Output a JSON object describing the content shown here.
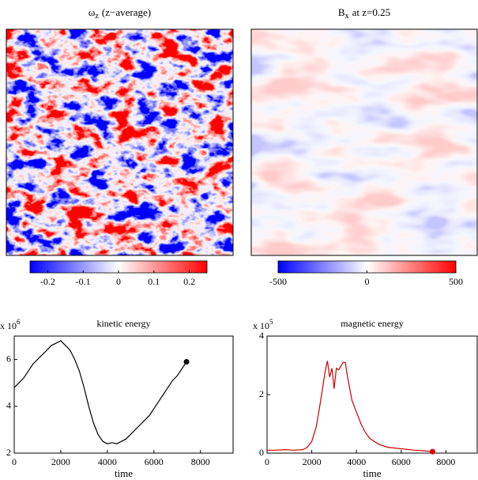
{
  "chart_data": [
    {
      "type": "heatmap",
      "title": "ω",
      "title_subscript": "z",
      "title_suffix": "(z−average)",
      "clim": [
        -0.25,
        0.25
      ],
      "cticks": [
        -0.2,
        -0.1,
        0,
        0.1,
        0.2
      ]
    },
    {
      "type": "heatmap",
      "title": "B",
      "title_subscript": "x",
      "title_suffix": "at z=0.25",
      "clim": [
        -500,
        500
      ],
      "cticks": [
        -500,
        0,
        500
      ]
    },
    {
      "type": "line",
      "title": "kinetic energy",
      "xlabel": "time",
      "ylabel_multiplier": "x 10",
      "ylabel_exponent": "6",
      "color": "#000000",
      "marker_color": "#000000",
      "x": [
        0,
        200,
        400,
        600,
        800,
        1000,
        1200,
        1400,
        1600,
        1800,
        2000,
        2200,
        2400,
        2600,
        2800,
        3000,
        3200,
        3400,
        3600,
        3800,
        4000,
        4200,
        4400,
        4600,
        4800,
        5000,
        5200,
        5400,
        5600,
        5800,
        6000,
        6200,
        6400,
        6600,
        6800,
        7000,
        7200,
        7400
      ],
      "values": [
        4.8,
        5.0,
        5.2,
        5.5,
        5.8,
        6.0,
        6.2,
        6.4,
        6.6,
        6.7,
        6.8,
        6.6,
        6.4,
        6.0,
        5.5,
        4.8,
        4.0,
        3.3,
        2.8,
        2.5,
        2.4,
        2.45,
        2.4,
        2.5,
        2.6,
        2.8,
        3.0,
        3.2,
        3.4,
        3.6,
        3.9,
        4.2,
        4.5,
        4.8,
        5.1,
        5.3,
        5.6,
        5.9
      ],
      "xlim": [
        0,
        9400
      ],
      "xticks": [
        0,
        2000,
        4000,
        6000,
        8000
      ],
      "ylim": [
        2,
        7
      ],
      "yticks": [
        2,
        4,
        6
      ]
    },
    {
      "type": "line",
      "title": "magnetic energy",
      "xlabel": "time",
      "ylabel_multiplier": "x 10",
      "ylabel_exponent": "5",
      "color": "#cc0000",
      "marker_color": "#dd0000",
      "x": [
        0,
        400,
        800,
        1200,
        1600,
        1800,
        2000,
        2200,
        2400,
        2600,
        2700,
        2800,
        2900,
        3000,
        3100,
        3200,
        3400,
        3500,
        3600,
        3800,
        4000,
        4200,
        4400,
        4600,
        4800,
        5000,
        5400,
        6000,
        6600,
        7000,
        7400
      ],
      "values": [
        0.1,
        0.1,
        0.12,
        0.1,
        0.12,
        0.2,
        0.4,
        0.9,
        1.8,
        2.8,
        3.15,
        2.6,
        2.9,
        2.2,
        2.9,
        2.85,
        3.1,
        3.1,
        2.6,
        1.8,
        1.4,
        1.0,
        0.7,
        0.5,
        0.4,
        0.3,
        0.2,
        0.15,
        0.1,
        0.08,
        0.05
      ],
      "xlim": [
        0,
        9400
      ],
      "xticks": [
        0,
        2000,
        4000,
        6000,
        8000
      ],
      "ylim": [
        0,
        4
      ],
      "yticks": [
        0,
        2,
        4
      ]
    }
  ]
}
